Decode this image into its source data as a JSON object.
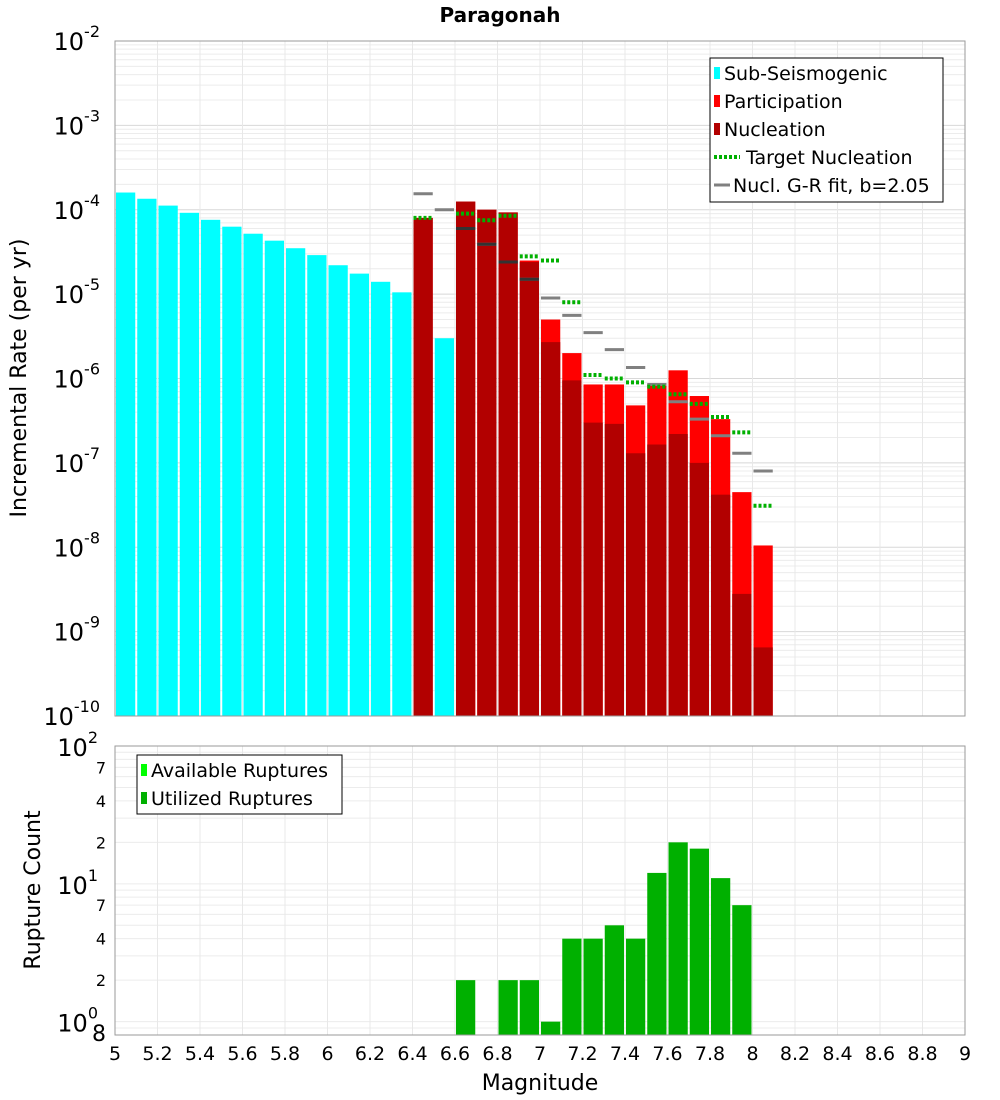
{
  "chart_data": [
    {
      "type": "bar",
      "title": "Paragonah",
      "xlabel": "Magnitude",
      "ylabel": "Incremental Rate (per yr)",
      "yscale": "log",
      "xlim": [
        5,
        9
      ],
      "ylim": [
        1e-10,
        0.01
      ],
      "y_tick_labels": [
        {
          "base": "10",
          "exp": "-10"
        },
        {
          "base": "10",
          "exp": "-9"
        },
        {
          "base": "10",
          "exp": "-8"
        },
        {
          "base": "10",
          "exp": "-7"
        },
        {
          "base": "10",
          "exp": "-6"
        },
        {
          "base": "10",
          "exp": "-5"
        },
        {
          "base": "10",
          "exp": "-4"
        },
        {
          "base": "10",
          "exp": "-3"
        },
        {
          "base": "10",
          "exp": "-2"
        }
      ],
      "bin_width": 0.1,
      "legend": {
        "placement": "top-right",
        "entries": [
          {
            "label": "Sub-Seismogenic",
            "color": "#00ffff",
            "style": "bar"
          },
          {
            "label": "Participation",
            "color": "#ff0000",
            "style": "bar"
          },
          {
            "label": "Nucleation",
            "color": "#b20000",
            "style": "bar"
          },
          {
            "label": "Target Nucleation",
            "color": "#00b000",
            "style": "dotted"
          },
          {
            "label": "Nucl. G-R fit, b=2.05",
            "color": "#808080",
            "style": "line"
          }
        ]
      },
      "series": [
        {
          "name": "Sub-Seismogenic",
          "color": "#00ffff",
          "x": [
            5.05,
            5.15,
            5.25,
            5.35,
            5.45,
            5.55,
            5.65,
            5.75,
            5.85,
            5.95,
            6.05,
            6.15,
            6.25,
            6.35,
            6.55
          ],
          "values": [
            0.00016,
            0.000135,
            0.000112,
            9.2e-05,
            7.6e-05,
            6.3e-05,
            5.2e-05,
            4.3e-05,
            3.5e-05,
            2.9e-05,
            2.2e-05,
            1.75e-05,
            1.4e-05,
            1.05e-05,
            3e-06
          ]
        },
        {
          "name": "Participation",
          "color": "#ff0000",
          "x": [
            6.45,
            6.65,
            6.75,
            6.85,
            6.95,
            7.05,
            7.15,
            7.25,
            7.35,
            7.45,
            7.55,
            7.65,
            7.75,
            7.85,
            7.95,
            8.05
          ],
          "values": [
            8e-05,
            0.000125,
            0.0001,
            9.3e-05,
            2.5e-05,
            5e-06,
            2e-06,
            8.5e-07,
            8.5e-07,
            4.8e-07,
            8.5e-07,
            1.25e-06,
            6.2e-07,
            3.3e-07,
            4.5e-08,
            1.05e-08
          ]
        },
        {
          "name": "Nucleation",
          "color": "#b20000",
          "x": [
            6.45,
            6.65,
            6.75,
            6.85,
            6.95,
            7.05,
            7.15,
            7.25,
            7.35,
            7.45,
            7.55,
            7.65,
            7.75,
            7.85,
            7.95,
            8.05
          ],
          "values": [
            8e-05,
            0.000125,
            0.0001,
            9.3e-05,
            2.4e-05,
            2.7e-06,
            9.5e-07,
            3e-07,
            2.9e-07,
            1.3e-07,
            1.65e-07,
            2.2e-07,
            1e-07,
            4.2e-08,
            2.8e-09,
            6.5e-10
          ]
        },
        {
          "name": "Target Nucleation",
          "color": "#00b000",
          "x": [
            6.45,
            6.65,
            6.75,
            6.85,
            6.95,
            7.05,
            7.15,
            7.25,
            7.35,
            7.45,
            7.55,
            7.65,
            7.75,
            7.85,
            7.95,
            8.05
          ],
          "values": [
            8e-05,
            9e-05,
            7.5e-05,
            8.5e-05,
            2.8e-05,
            2.5e-05,
            8e-06,
            1.1e-06,
            1e-06,
            9e-07,
            8e-07,
            6.5e-07,
            5e-07,
            3.5e-07,
            2.3e-07,
            3.1e-08
          ]
        },
        {
          "name": "Nucl. G-R fit, b=2.05",
          "color": "#808080",
          "x": [
            6.45,
            6.55,
            6.65,
            6.75,
            6.85,
            6.95,
            7.05,
            7.15,
            7.25,
            7.35,
            7.45,
            7.55,
            7.65,
            7.75,
            7.85,
            7.95,
            8.05
          ],
          "values": [
            0.000155,
            0.0001,
            6e-05,
            3.9e-05,
            2.4e-05,
            1.5e-05,
            9e-06,
            5.6e-06,
            3.5e-06,
            2.2e-06,
            1.35e-06,
            8.5e-07,
            5.3e-07,
            3.3e-07,
            2.1e-07,
            1.3e-07,
            8e-08
          ]
        }
      ]
    },
    {
      "type": "bar",
      "xlabel": "Magnitude",
      "ylabel": "Rupture Count",
      "yscale": "log",
      "xlim": [
        5,
        9
      ],
      "ylim": [
        0.8,
        100
      ],
      "x_tick_labels": [
        "5",
        "5.2",
        "5.4",
        "5.6",
        "5.8",
        "6",
        "6.2",
        "6.4",
        "6.6",
        "6.8",
        "7",
        "7.2",
        "7.4",
        "7.6",
        "7.8",
        "8",
        "8.2",
        "8.4",
        "8.6",
        "8.8",
        "9"
      ],
      "y_major_labels": [
        {
          "value": 1,
          "base": "10",
          "exp": "0"
        },
        {
          "value": 10,
          "base": "10",
          "exp": "1"
        },
        {
          "value": 100,
          "base": "10",
          "exp": "2"
        }
      ],
      "y_minor_labels": [
        {
          "value": 0.8,
          "label": "8"
        },
        {
          "value": 2,
          "label": "2"
        },
        {
          "value": 4,
          "label": "4"
        },
        {
          "value": 7,
          "label": "7"
        },
        {
          "value": 20,
          "label": "2"
        },
        {
          "value": 40,
          "label": "4"
        },
        {
          "value": 70,
          "label": "7"
        }
      ],
      "legend": {
        "placement": "top-left",
        "entries": [
          {
            "label": "Available Ruptures",
            "color": "#00ff00"
          },
          {
            "label": "Utilized Ruptures",
            "color": "#00b000"
          }
        ]
      },
      "series": [
        {
          "name": "Utilized Ruptures",
          "color": "#00b000",
          "x": [
            6.65,
            6.85,
            6.95,
            7.05,
            7.15,
            7.25,
            7.35,
            7.45,
            7.55,
            7.65,
            7.75,
            7.85,
            7.95
          ],
          "values": [
            2,
            2,
            2,
            1,
            4,
            4,
            5,
            4,
            12,
            20,
            18,
            11,
            7
          ]
        }
      ]
    }
  ]
}
